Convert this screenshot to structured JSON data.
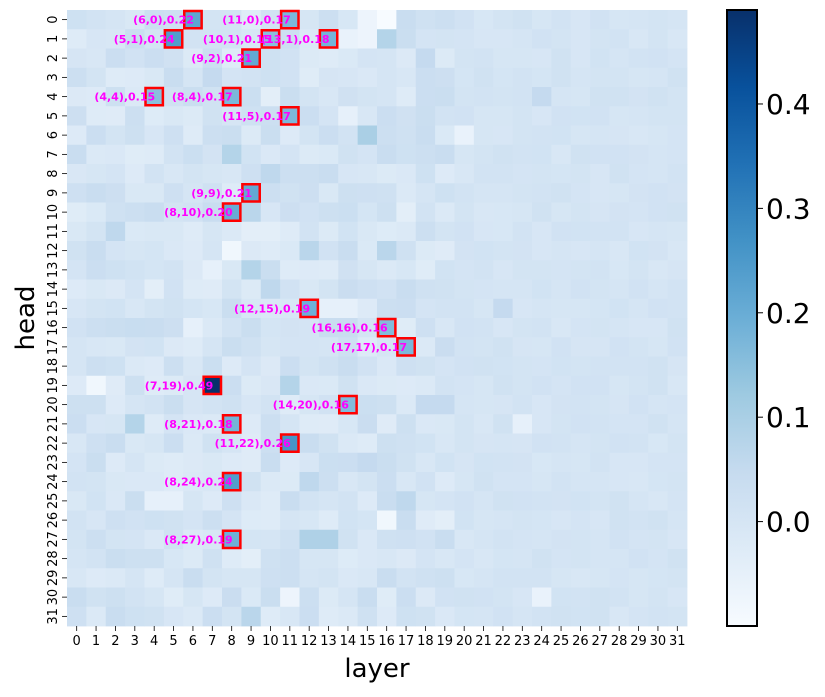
{
  "chart_data": {
    "type": "heatmap",
    "title": "",
    "xlabel": "layer",
    "ylabel": "head",
    "x_categories": [
      "0",
      "1",
      "2",
      "3",
      "4",
      "5",
      "6",
      "7",
      "8",
      "9",
      "10",
      "11",
      "12",
      "13",
      "14",
      "15",
      "16",
      "17",
      "18",
      "19",
      "20",
      "21",
      "22",
      "23",
      "24",
      "25",
      "26",
      "27",
      "28",
      "29",
      "30",
      "31"
    ],
    "y_categories": [
      "0",
      "1",
      "2",
      "3",
      "4",
      "5",
      "6",
      "7",
      "8",
      "9",
      "10",
      "11",
      "12",
      "13",
      "14",
      "15",
      "16",
      "17",
      "18",
      "19",
      "20",
      "21",
      "22",
      "23",
      "24",
      "25",
      "26",
      "27",
      "28",
      "29",
      "30",
      "31"
    ],
    "colormap": "Blues",
    "vmin": -0.1,
    "vmax": 0.49,
    "colorbar_ticks": [
      "0.0",
      "0.1",
      "0.2",
      "0.3",
      "0.4"
    ],
    "colorbar_tick_values": [
      0.0,
      0.1,
      0.2,
      0.3,
      0.4
    ],
    "annotation_style": {
      "label_color": "#ff00ff",
      "box_color": "#ff0000"
    },
    "highlights": [
      {
        "layer": 6,
        "head": 0,
        "value": 0.22,
        "label": "(6,0),0.22"
      },
      {
        "layer": 11,
        "head": 0,
        "value": 0.17,
        "label": "(11,0),0.17"
      },
      {
        "layer": 5,
        "head": 1,
        "value": 0.24,
        "label": "(5,1),0.24"
      },
      {
        "layer": 10,
        "head": 1,
        "value": 0.15,
        "label": "(10,1),0.15"
      },
      {
        "layer": 13,
        "head": 1,
        "value": 0.18,
        "label": "(13,1),0.18"
      },
      {
        "layer": 9,
        "head": 2,
        "value": 0.21,
        "label": "(9,2),0.21"
      },
      {
        "layer": 4,
        "head": 4,
        "value": 0.15,
        "label": "(4,4),0.15"
      },
      {
        "layer": 8,
        "head": 4,
        "value": 0.17,
        "label": "(8,4),0.17"
      },
      {
        "layer": 11,
        "head": 5,
        "value": 0.17,
        "label": "(11,5),0.17"
      },
      {
        "layer": 9,
        "head": 9,
        "value": 0.21,
        "label": "(9,9),0.21"
      },
      {
        "layer": 8,
        "head": 10,
        "value": 0.2,
        "label": "(8,10),0.20"
      },
      {
        "layer": 12,
        "head": 15,
        "value": 0.19,
        "label": "(12,15),0.19"
      },
      {
        "layer": 16,
        "head": 16,
        "value": 0.16,
        "label": "(16,16),0.16"
      },
      {
        "layer": 17,
        "head": 17,
        "value": 0.17,
        "label": "(17,17),0.17"
      },
      {
        "layer": 7,
        "head": 19,
        "value": 0.49,
        "label": "(7,19),0.49"
      },
      {
        "layer": 14,
        "head": 20,
        "value": 0.16,
        "label": "(14,20),0.16"
      },
      {
        "layer": 8,
        "head": 21,
        "value": 0.18,
        "label": "(8,21),0.18"
      },
      {
        "layer": 11,
        "head": 22,
        "value": 0.26,
        "label": "(11,22),0.26"
      },
      {
        "layer": 8,
        "head": 24,
        "value": 0.24,
        "label": "(8,24),0.24"
      },
      {
        "layer": 8,
        "head": 27,
        "value": 0.19,
        "label": "(8,27),0.19"
      }
    ],
    "medium_cells": [
      {
        "layer": 16,
        "head": 1,
        "value": 0.08
      },
      {
        "layer": 8,
        "head": 7,
        "value": 0.08
      },
      {
        "layer": 15,
        "head": 6,
        "value": 0.1
      },
      {
        "layer": 9,
        "head": 13,
        "value": 0.08
      },
      {
        "layer": 12,
        "head": 12,
        "value": 0.07
      },
      {
        "layer": 16,
        "head": 12,
        "value": 0.07
      },
      {
        "layer": 3,
        "head": 21,
        "value": 0.08
      },
      {
        "layer": 11,
        "head": 19,
        "value": 0.08
      },
      {
        "layer": 12,
        "head": 27,
        "value": 0.09
      },
      {
        "layer": 13,
        "head": 27,
        "value": 0.09
      },
      {
        "layer": 9,
        "head": 31,
        "value": 0.07
      },
      {
        "layer": 10,
        "head": 8,
        "value": 0.06
      },
      {
        "layer": 10,
        "head": 14,
        "value": 0.06
      },
      {
        "layer": 12,
        "head": 24,
        "value": 0.06
      },
      {
        "layer": 17,
        "head": 25,
        "value": 0.06
      },
      {
        "layer": 2,
        "head": 11,
        "value": 0.06
      },
      {
        "layer": 9,
        "head": 10,
        "value": 0.07
      },
      {
        "layer": 15,
        "head": 23,
        "value": 0.05
      },
      {
        "layer": 18,
        "head": 20,
        "value": 0.05
      },
      {
        "layer": 19,
        "head": 20,
        "value": 0.05
      },
      {
        "layer": 22,
        "head": 15,
        "value": 0.05
      },
      {
        "layer": 24,
        "head": 4,
        "value": 0.05
      },
      {
        "layer": 18,
        "head": 2,
        "value": 0.05
      },
      {
        "layer": 7,
        "head": 3,
        "value": 0.05
      }
    ],
    "low_cells": [
      {
        "layer": 16,
        "head": 0,
        "value": -0.1
      },
      {
        "layer": 15,
        "head": 0,
        "value": -0.07
      },
      {
        "layer": 14,
        "head": 1,
        "value": -0.06
      },
      {
        "layer": 15,
        "head": 1,
        "value": -0.07
      },
      {
        "layer": 1,
        "head": 19,
        "value": -0.08
      },
      {
        "layer": 8,
        "head": 12,
        "value": -0.08
      },
      {
        "layer": 16,
        "head": 26,
        "value": -0.08
      },
      {
        "layer": 11,
        "head": 30,
        "value": -0.07
      },
      {
        "layer": 24,
        "head": 30,
        "value": -0.06
      },
      {
        "layer": 20,
        "head": 6,
        "value": -0.06
      },
      {
        "layer": 7,
        "head": 13,
        "value": -0.05
      },
      {
        "layer": 4,
        "head": 25,
        "value": -0.05
      },
      {
        "layer": 5,
        "head": 25,
        "value": -0.05
      },
      {
        "layer": 14,
        "head": 5,
        "value": -0.05
      },
      {
        "layer": 17,
        "head": 10,
        "value": -0.04
      },
      {
        "layer": 6,
        "head": 16,
        "value": -0.05
      },
      {
        "layer": 13,
        "head": 15,
        "value": -0.05
      },
      {
        "layer": 14,
        "head": 15,
        "value": -0.05
      },
      {
        "layer": 23,
        "head": 21,
        "value": -0.05
      },
      {
        "layer": 19,
        "head": 26,
        "value": -0.04
      },
      {
        "layer": 9,
        "head": 28,
        "value": -0.04
      },
      {
        "layer": 10,
        "head": 4,
        "value": -0.04
      },
      {
        "layer": 4,
        "head": 14,
        "value": -0.04
      },
      {
        "layer": 9,
        "head": 11,
        "value": -0.04
      },
      {
        "layer": 10,
        "head": 11,
        "value": -0.04
      }
    ],
    "background_range": [
      -0.03,
      0.04
    ],
    "grid": false,
    "legend": "colorbar-right"
  }
}
